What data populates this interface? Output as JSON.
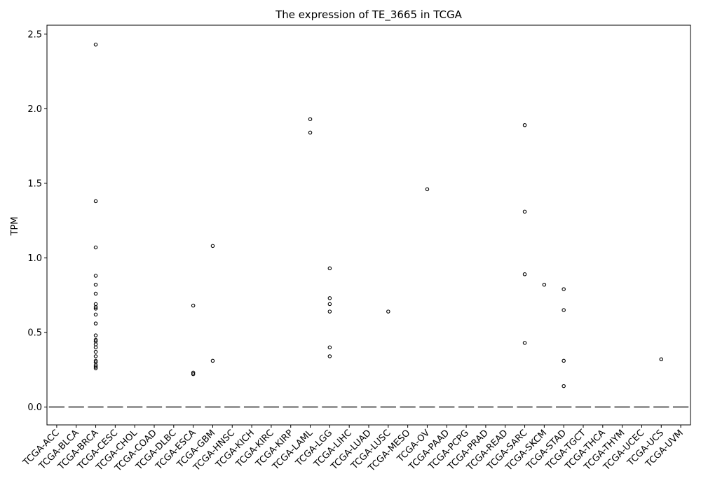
{
  "chart_data": {
    "type": "box",
    "title": "The expression of TE_3665 in TCGA",
    "xlabel": "",
    "ylabel": "TPM",
    "ylim": [
      -0.12,
      2.56
    ],
    "yticks": [
      0.0,
      0.5,
      1.0,
      1.5,
      2.0,
      2.5
    ],
    "ytick_labels": [
      "0.0",
      "0.5",
      "1.0",
      "1.5",
      "2.0",
      "2.5"
    ],
    "grid": false,
    "legend": "none",
    "colors": {
      "outlier_stroke": "#000000",
      "median": "#555555",
      "axis": "#000000"
    },
    "categories": [
      "TCGA-ACC",
      "TCGA-BLCA",
      "TCGA-BRCA",
      "TCGA-CESC",
      "TCGA-CHOL",
      "TCGA-COAD",
      "TCGA-DLBC",
      "TCGA-ESCA",
      "TCGA-GBM",
      "TCGA-HNSC",
      "TCGA-KICH",
      "TCGA-KIRC",
      "TCGA-KIRP",
      "TCGA-LAML",
      "TCGA-LGG",
      "TCGA-LIHC",
      "TCGA-LUAD",
      "TCGA-LUSC",
      "TCGA-MESO",
      "TCGA-OV",
      "TCGA-PAAD",
      "TCGA-PCPG",
      "TCGA-PRAD",
      "TCGA-READ",
      "TCGA-SARC",
      "TCGA-SKCM",
      "TCGA-STAD",
      "TCGA-TGCT",
      "TCGA-THCA",
      "TCGA-THYM",
      "TCGA-UCEC",
      "TCGA-UCS",
      "TCGA-UVM"
    ],
    "medians": [
      0,
      0,
      0,
      0,
      0,
      0,
      0,
      0,
      0,
      0,
      0,
      0,
      0,
      0,
      0,
      0,
      0,
      0,
      0,
      0,
      0,
      0,
      0,
      0,
      0,
      0,
      0,
      0,
      0,
      0,
      0,
      0,
      0
    ],
    "outliers": [
      [],
      [],
      [
        2.43,
        1.38,
        1.07,
        0.88,
        0.82,
        0.76,
        0.69,
        0.67,
        0.66,
        0.62,
        0.56,
        0.48,
        0.45,
        0.44,
        0.42,
        0.4,
        0.37,
        0.34,
        0.31,
        0.3,
        0.28,
        0.27,
        0.26
      ],
      [],
      [],
      [],
      [],
      [
        0.68,
        0.23,
        0.22
      ],
      [
        1.08,
        0.31
      ],
      [],
      [],
      [],
      [],
      [
        1.93,
        1.84
      ],
      [
        0.93,
        0.73,
        0.69,
        0.64,
        0.4,
        0.34
      ],
      [],
      [],
      [
        0.64
      ],
      [],
      [
        1.46
      ],
      [],
      [],
      [],
      [],
      [
        1.89,
        1.31,
        0.89,
        0.43
      ],
      [
        0.82
      ],
      [
        0.79,
        0.65,
        0.31,
        0.14
      ],
      [],
      [],
      [],
      [],
      [
        0.32
      ],
      []
    ]
  }
}
